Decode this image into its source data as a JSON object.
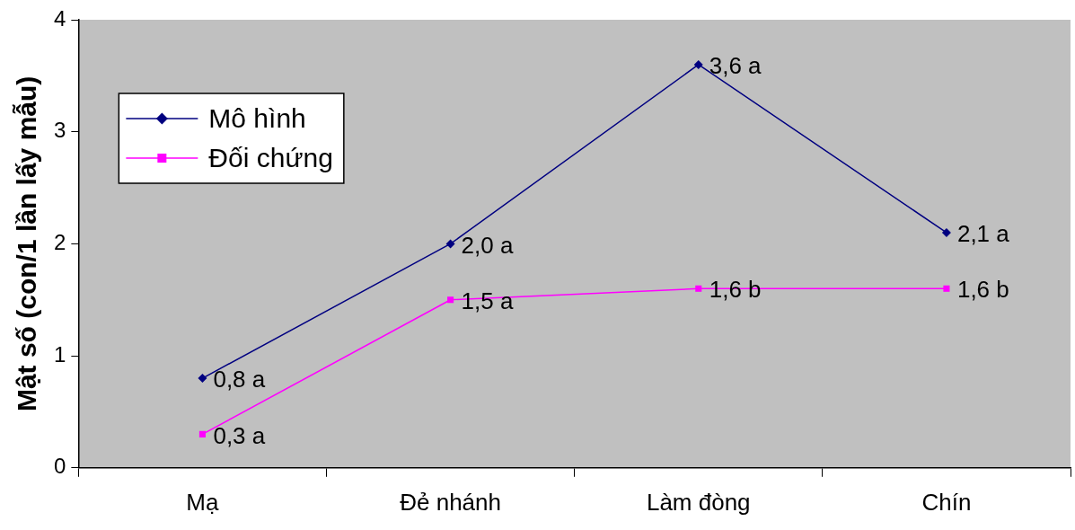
{
  "chart_data": {
    "type": "line",
    "ylabel": "Mật số (con/1 lần lấy mẫu)",
    "categories": [
      "Mạ",
      "Đẻ nhánh",
      "Làm đòng",
      "Chín"
    ],
    "series": [
      {
        "name": "Mô hình",
        "color": "#000080",
        "marker": "diamond",
        "values": [
          0.8,
          2.0,
          3.6,
          2.1
        ],
        "value_labels": [
          "0,8 a",
          "2,0 a",
          "3,6 a",
          "2,1 a"
        ]
      },
      {
        "name": "Đối chứng",
        "color": "#ff00ff",
        "marker": "square",
        "values": [
          0.3,
          1.5,
          1.6,
          1.6
        ],
        "value_labels": [
          "0,3 a",
          "1,5 a",
          "1,6 b",
          "1,6 b"
        ]
      }
    ],
    "ylim": [
      0,
      4
    ],
    "yticks": [
      0,
      1,
      2,
      3,
      4
    ],
    "grid": false,
    "legend": "top left",
    "line_style": "solid"
  }
}
